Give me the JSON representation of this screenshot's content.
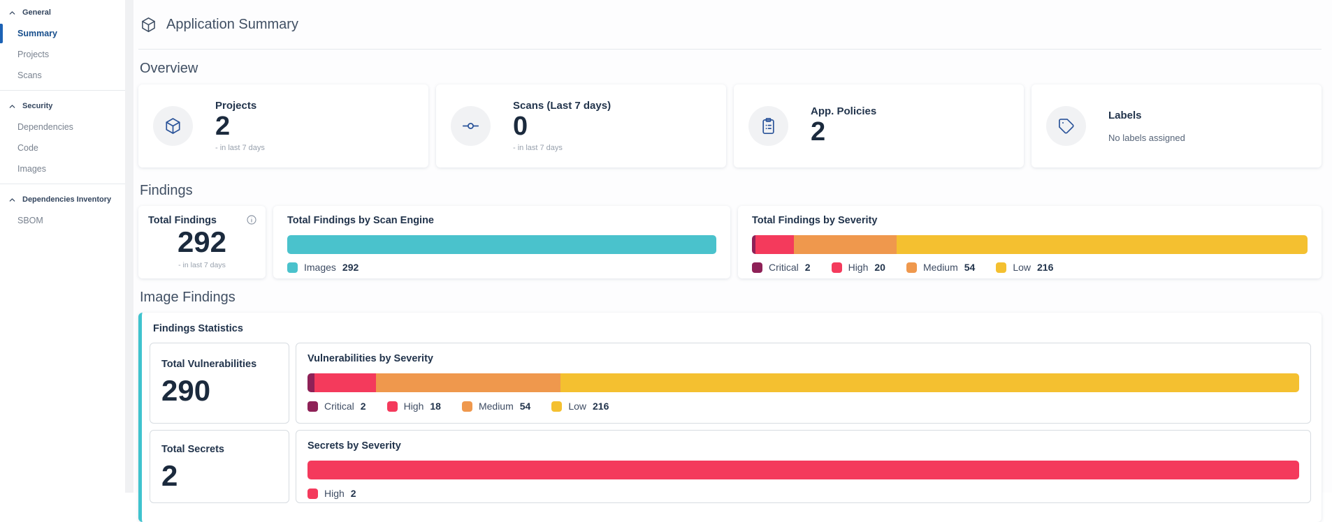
{
  "sidebar": {
    "groups": [
      {
        "label": "General",
        "items": [
          {
            "label": "Summary",
            "active": true
          },
          {
            "label": "Projects",
            "active": false
          },
          {
            "label": "Scans",
            "active": false
          }
        ]
      },
      {
        "label": "Security",
        "items": [
          {
            "label": "Dependencies",
            "active": false
          },
          {
            "label": "Code",
            "active": false
          },
          {
            "label": "Images",
            "active": false
          }
        ]
      },
      {
        "label": "Dependencies Inventory",
        "items": [
          {
            "label": "SBOM",
            "active": false
          }
        ]
      }
    ]
  },
  "header": {
    "title": "Application Summary"
  },
  "overview": {
    "title": "Overview",
    "projects": {
      "label": "Projects",
      "value": "2",
      "subtext": "- in last 7 days"
    },
    "scans": {
      "label": "Scans (Last 7 days)",
      "value": "0",
      "subtext": "- in last 7 days"
    },
    "policies": {
      "label": "App. Policies",
      "value": "2"
    },
    "labels": {
      "label": "Labels",
      "note": "No labels assigned"
    }
  },
  "findings": {
    "title": "Findings",
    "total": {
      "label": "Total Findings",
      "value": "292",
      "subtext": "- in last 7 days"
    }
  },
  "image_findings": {
    "title": "Image Findings",
    "stats_title": "Findings Statistics",
    "total_vulnerabilities": {
      "label": "Total Vulnerabilities",
      "value": "290"
    },
    "total_secrets": {
      "label": "Total Secrets",
      "value": "2"
    }
  },
  "charts": {
    "by_scan_engine": {
      "type": "stacked-bar",
      "title": "Total Findings by Scan Engine",
      "total": 292,
      "segments": [
        {
          "label": "Images",
          "value": 292,
          "color": "#4AC2CC"
        }
      ]
    },
    "findings_by_severity": {
      "type": "stacked-bar",
      "title": "Total Findings by Severity",
      "total": 292,
      "segments": [
        {
          "label": "Critical",
          "value": 2,
          "color": "#8E2157"
        },
        {
          "label": "High",
          "value": 20,
          "color": "#F43A5C"
        },
        {
          "label": "Medium",
          "value": 54,
          "color": "#EF984D"
        },
        {
          "label": "Low",
          "value": 216,
          "color": "#F4C030"
        }
      ]
    },
    "vulnerabilities_by_severity": {
      "type": "stacked-bar",
      "title": "Vulnerabilities by Severity",
      "total": 290,
      "segments": [
        {
          "label": "Critical",
          "value": 2,
          "color": "#8E2157"
        },
        {
          "label": "High",
          "value": 18,
          "color": "#F43A5C"
        },
        {
          "label": "Medium",
          "value": 54,
          "color": "#EF984D"
        },
        {
          "label": "Low",
          "value": 216,
          "color": "#F4C030"
        }
      ]
    },
    "secrets_by_severity": {
      "type": "stacked-bar",
      "title": "Secrets by Severity",
      "total": 2,
      "segments": [
        {
          "label": "High",
          "value": 2,
          "color": "#F43A5C"
        }
      ]
    }
  },
  "colors": {
    "active_indicator": "#1C62B5",
    "icon_blue": "#2A5399",
    "teal_accent": "#3FC3CE",
    "critical": "#8E2157",
    "high": "#F43A5C",
    "medium": "#EF984D",
    "low": "#F4C030"
  }
}
